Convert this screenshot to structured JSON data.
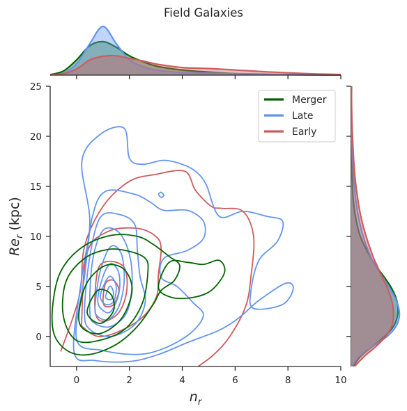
{
  "chart_data": {
    "type": "contour",
    "title": "Field Galaxies",
    "xlabel": "n_r",
    "ylabel": "Re_r (kpc)",
    "xlim": [
      -1,
      10
    ],
    "ylim": [
      -3,
      25
    ],
    "xticks": [
      0,
      2,
      4,
      6,
      8,
      10
    ],
    "yticks": [
      0,
      5,
      10,
      15,
      20,
      25
    ],
    "legend": {
      "placement": "top-right"
    },
    "grid": false,
    "series": [
      {
        "name": "Merger",
        "color": "#006400",
        "contours": [
          [
            [
              -0.9,
              3.2
            ],
            [
              -0.6,
              6.5
            ],
            [
              0.2,
              8.9
            ],
            [
              1.3,
              10.1
            ],
            [
              2.3,
              10.0
            ],
            [
              2.9,
              9.2
            ],
            [
              3.5,
              8.0
            ],
            [
              3.9,
              7.1
            ],
            [
              3.7,
              5.6
            ],
            [
              3.2,
              4.6
            ],
            [
              2.9,
              3.2
            ],
            [
              2.3,
              1.0
            ],
            [
              1.5,
              -0.8
            ],
            [
              0.5,
              -1.8
            ],
            [
              -0.3,
              -1.5
            ],
            [
              -0.85,
              0.2
            ],
            [
              -0.9,
              3.2
            ]
          ],
          [
            [
              -0.5,
              2.0
            ],
            [
              -0.4,
              5.5
            ],
            [
              0.3,
              7.8
            ],
            [
              1.2,
              8.7
            ],
            [
              2.0,
              8.5
            ],
            [
              2.6,
              7.8
            ],
            [
              2.7,
              6.5
            ],
            [
              2.5,
              3.4
            ],
            [
              1.9,
              0.9
            ],
            [
              1.0,
              -0.3
            ],
            [
              0.0,
              -0.4
            ],
            [
              -0.5,
              2.0
            ]
          ],
          [
            [
              0.1,
              2.6
            ],
            [
              0.4,
              5.4
            ],
            [
              1.1,
              7.1
            ],
            [
              1.8,
              6.7
            ],
            [
              2.1,
              4.6
            ],
            [
              1.7,
              1.8
            ],
            [
              0.9,
              0.3
            ],
            [
              0.2,
              0.9
            ],
            [
              0.1,
              2.6
            ]
          ],
          [
            [
              0.4,
              2.4
            ],
            [
              0.8,
              4.6
            ],
            [
              1.3,
              4.2
            ],
            [
              1.4,
              2.6
            ],
            [
              0.9,
              1.3
            ],
            [
              0.4,
              2.4
            ]
          ],
          [
            [
              3.5,
              7.4
            ],
            [
              4.2,
              7.4
            ],
            [
              4.8,
              7.2
            ],
            [
              5.4,
              7.6
            ],
            [
              5.6,
              6.4
            ],
            [
              5.1,
              4.6
            ],
            [
              4.4,
              3.9
            ],
            [
              3.6,
              3.9
            ],
            [
              3.1,
              4.9
            ],
            [
              3.5,
              7.4
            ]
          ]
        ]
      },
      {
        "name": "Late",
        "color": "#6495ED",
        "contours": [
          [
            [
              -0.1,
              -1.5
            ],
            [
              0.2,
              6.0
            ],
            [
              0.5,
              11.5
            ],
            [
              0.2,
              17.5
            ],
            [
              0.9,
              20.2
            ],
            [
              1.8,
              20.8
            ],
            [
              2.0,
              17.8
            ],
            [
              2.5,
              17.2
            ],
            [
              3.3,
              17.6
            ],
            [
              4.0,
              17.2
            ],
            [
              4.5,
              16.5
            ],
            [
              4.9,
              15.2
            ],
            [
              5.4,
              12.0
            ],
            [
              6.3,
              12.5
            ],
            [
              7.2,
              12.0
            ],
            [
              7.8,
              11.5
            ],
            [
              7.6,
              9.5
            ],
            [
              6.9,
              7.6
            ],
            [
              6.6,
              4.6
            ],
            [
              6.7,
              2.8
            ],
            [
              7.8,
              3.2
            ],
            [
              8.2,
              4.8
            ],
            [
              7.9,
              5.3
            ],
            [
              6.9,
              3.6
            ],
            [
              6.3,
              2.2
            ],
            [
              5.9,
              1.4
            ],
            [
              5.3,
              0.5
            ],
            [
              4.2,
              -0.6
            ],
            [
              3.1,
              -1.8
            ],
            [
              2.0,
              -2.5
            ],
            [
              0.7,
              -2.4
            ],
            [
              -0.1,
              -1.5
            ]
          ],
          [
            [
              0.0,
              -0.3
            ],
            [
              0.3,
              6.0
            ],
            [
              0.6,
              12.0
            ],
            [
              1.1,
              14.5
            ],
            [
              2.2,
              14.2
            ],
            [
              2.8,
              13.4
            ],
            [
              3.3,
              12.6
            ],
            [
              4.2,
              12.6
            ],
            [
              4.8,
              11.5
            ],
            [
              4.8,
              9.8
            ],
            [
              4.2,
              8.6
            ],
            [
              3.3,
              7.8
            ],
            [
              3.2,
              5.9
            ],
            [
              3.8,
              5.0
            ],
            [
              4.4,
              3.4
            ],
            [
              4.8,
              2.1
            ],
            [
              4.3,
              0.3
            ],
            [
              3.3,
              -1.2
            ],
            [
              2.3,
              -1.8
            ],
            [
              1.0,
              -1.4
            ],
            [
              0.0,
              -0.3
            ]
          ],
          [
            [
              0.3,
              2.5
            ],
            [
              0.5,
              8.0
            ],
            [
              0.9,
              11.9
            ],
            [
              1.6,
              12.2
            ],
            [
              2.2,
              11.2
            ],
            [
              2.3,
              8.6
            ],
            [
              2.4,
              6.0
            ],
            [
              2.6,
              3.5
            ],
            [
              2.2,
              1.2
            ],
            [
              1.3,
              0.0
            ],
            [
              0.5,
              0.7
            ],
            [
              0.3,
              2.5
            ]
          ],
          [
            [
              0.5,
              2.5
            ],
            [
              0.6,
              7.5
            ],
            [
              1.0,
              10.6
            ],
            [
              1.6,
              10.4
            ],
            [
              2.0,
              8.2
            ],
            [
              2.1,
              5.3
            ],
            [
              1.9,
              2.4
            ],
            [
              1.3,
              1.0
            ],
            [
              0.7,
              1.3
            ],
            [
              0.5,
              2.5
            ]
          ],
          [
            [
              0.7,
              3.0
            ],
            [
              0.9,
              6.6
            ],
            [
              1.3,
              9.0
            ],
            [
              1.7,
              8.2
            ],
            [
              1.8,
              5.5
            ],
            [
              1.6,
              3.0
            ],
            [
              1.2,
              1.7
            ],
            [
              0.8,
              2.0
            ],
            [
              0.7,
              3.0
            ]
          ],
          [
            [
              0.8,
              3.6
            ],
            [
              1.0,
              6.0
            ],
            [
              1.3,
              7.3
            ],
            [
              1.6,
              6.3
            ],
            [
              1.6,
              4.3
            ],
            [
              1.3,
              2.5
            ],
            [
              1.0,
              2.6
            ],
            [
              0.8,
              3.6
            ]
          ],
          [
            [
              0.9,
              4.0
            ],
            [
              1.1,
              5.5
            ],
            [
              1.3,
              6.0
            ],
            [
              1.5,
              5.0
            ],
            [
              1.4,
              3.5
            ],
            [
              1.1,
              3.2
            ],
            [
              0.9,
              4.0
            ]
          ],
          [
            [
              1.1,
              3.9
            ],
            [
              1.2,
              4.8
            ],
            [
              1.3,
              5.0
            ],
            [
              1.4,
              4.3
            ],
            [
              1.3,
              3.7
            ],
            [
              1.1,
              3.9
            ]
          ],
          [
            [
              3.1,
              14.2
            ],
            [
              3.2,
              14.4
            ],
            [
              3.3,
              14.1
            ],
            [
              3.2,
              13.9
            ],
            [
              3.1,
              14.2
            ]
          ]
        ]
      },
      {
        "name": "Early",
        "color": "#CD5C5C",
        "contours": [
          [
            [
              -0.6,
              -1.5
            ],
            [
              0.1,
              4.0
            ],
            [
              0.3,
              9.0
            ],
            [
              1.0,
              13.0
            ],
            [
              2.0,
              15.5
            ],
            [
              3.0,
              16.2
            ],
            [
              4.1,
              16.5
            ],
            [
              4.5,
              14.6
            ],
            [
              5.1,
              13.0
            ],
            [
              5.5,
              12.8
            ],
            [
              6.3,
              12.5
            ],
            [
              6.7,
              10.0
            ],
            [
              6.6,
              6.0
            ],
            [
              6.4,
              3.0
            ],
            [
              5.8,
              0.0
            ],
            [
              5.2,
              -1.8
            ],
            [
              4.6,
              -3.0
            ]
          ],
          [
            [
              0.2,
              2.0
            ],
            [
              0.4,
              8.4
            ],
            [
              1.2,
              10.5
            ],
            [
              2.3,
              10.8
            ],
            [
              3.0,
              10.0
            ],
            [
              3.2,
              8.8
            ],
            [
              3.1,
              6.3
            ],
            [
              3.0,
              3.8
            ],
            [
              2.3,
              1.5
            ],
            [
              1.0,
              0.0
            ],
            [
              0.3,
              0.8
            ],
            [
              0.2,
              2.0
            ]
          ],
          [
            [
              0.7,
              2.6
            ],
            [
              0.8,
              6.6
            ],
            [
              1.2,
              7.5
            ],
            [
              1.8,
              6.9
            ],
            [
              1.9,
              4.6
            ],
            [
              1.6,
              2.4
            ],
            [
              1.0,
              1.5
            ],
            [
              0.7,
              2.6
            ]
          ],
          [
            [
              1.0,
              3.6
            ],
            [
              1.1,
              5.3
            ],
            [
              1.4,
              5.6
            ],
            [
              1.6,
              4.6
            ],
            [
              1.4,
              3.2
            ],
            [
              1.1,
              3.0
            ],
            [
              1.0,
              3.6
            ]
          ]
        ]
      }
    ],
    "marginal_x": [
      {
        "name": "Merger",
        "color": "#006400",
        "x": [
          -1,
          -0.5,
          0,
          0.5,
          1,
          1.5,
          2,
          2.5,
          3,
          4,
          5,
          6,
          7,
          8,
          9,
          10
        ],
        "density": [
          0.01,
          0.08,
          0.3,
          0.58,
          0.66,
          0.55,
          0.38,
          0.27,
          0.18,
          0.1,
          0.06,
          0.03,
          0.015,
          0.008,
          0.004,
          0.002
        ]
      },
      {
        "name": "Late",
        "color": "#6495ED",
        "x": [
          -1,
          -0.5,
          0,
          0.5,
          1,
          1.5,
          2,
          2.5,
          3,
          4,
          5,
          6,
          7,
          8,
          9,
          10
        ],
        "density": [
          0.005,
          0.04,
          0.22,
          0.62,
          0.96,
          0.62,
          0.3,
          0.17,
          0.1,
          0.05,
          0.04,
          0.03,
          0.02,
          0.01,
          0.005,
          0.002
        ]
      },
      {
        "name": "Early",
        "color": "#CD5C5C",
        "x": [
          -1,
          -0.5,
          0,
          0.5,
          1,
          1.5,
          2,
          2.5,
          3,
          4,
          5,
          6,
          7,
          8,
          9,
          10
        ],
        "density": [
          0.005,
          0.03,
          0.12,
          0.3,
          0.37,
          0.38,
          0.33,
          0.28,
          0.22,
          0.15,
          0.13,
          0.1,
          0.07,
          0.045,
          0.025,
          0.012
        ]
      }
    ],
    "marginal_y": [
      {
        "name": "Merger",
        "color": "#006400",
        "y": [
          -3,
          -2,
          -1,
          0,
          1,
          2,
          3,
          4,
          5,
          6,
          7,
          8,
          10,
          12,
          14,
          16,
          18,
          20,
          22,
          25
        ],
        "density": [
          0.05,
          0.2,
          0.45,
          0.7,
          0.88,
          0.96,
          0.97,
          0.92,
          0.82,
          0.68,
          0.53,
          0.4,
          0.2,
          0.1,
          0.05,
          0.03,
          0.02,
          0.012,
          0.008,
          0.02
        ]
      },
      {
        "name": "Late",
        "color": "#6495ED",
        "y": [
          -3,
          -2,
          -1,
          0,
          1,
          2,
          3,
          4,
          5,
          6,
          7,
          8,
          10,
          12,
          14,
          16,
          18,
          20,
          22,
          25
        ],
        "density": [
          0.03,
          0.18,
          0.45,
          0.75,
          0.93,
          1.0,
          0.98,
          0.9,
          0.78,
          0.65,
          0.52,
          0.41,
          0.26,
          0.16,
          0.1,
          0.06,
          0.04,
          0.025,
          0.012,
          0.005
        ]
      },
      {
        "name": "Early",
        "color": "#CD5C5C",
        "y": [
          -3,
          -2,
          -1,
          0,
          1,
          2,
          3,
          4,
          5,
          6,
          7,
          8,
          10,
          12,
          14,
          16,
          18,
          20,
          22,
          25
        ],
        "density": [
          0.08,
          0.28,
          0.52,
          0.72,
          0.84,
          0.88,
          0.87,
          0.82,
          0.74,
          0.64,
          0.55,
          0.46,
          0.32,
          0.21,
          0.14,
          0.09,
          0.06,
          0.04,
          0.025,
          0.015
        ]
      }
    ]
  }
}
